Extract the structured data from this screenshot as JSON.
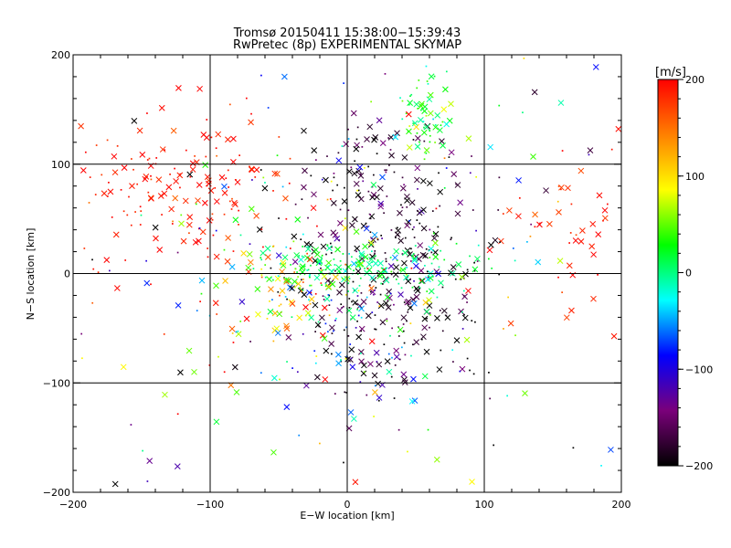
{
  "chart_data": {
    "type": "scatter",
    "title": "Tromsø 20150411 15:38:00−15:39:43",
    "subtitle": "RwPretec (8p) EXPERIMENTAL SKYMAP",
    "xlabel": "E−W location [km]",
    "ylabel": "N−S location [km]",
    "xlim": [
      -200,
      200
    ],
    "ylim": [
      -200,
      200
    ],
    "x_ticks": [
      "−200",
      "−100",
      "0",
      "100",
      "200"
    ],
    "y_ticks": [
      "−200",
      "−100",
      "0",
      "100",
      "200"
    ],
    "grid": "lines at −100, 0, 100 km",
    "colorbar": {
      "label": "[m/s]",
      "range": [
        -200,
        200
      ],
      "ticks": [
        "200",
        "100",
        "0",
        "−100",
        "−200"
      ],
      "colormap": [
        "#000000",
        "#7a007a",
        "#0000ff",
        "#00ffff",
        "#00ff00",
        "#ffff00",
        "#ff8000",
        "#ff0000"
      ]
    },
    "marker_types": [
      "cross",
      "dot"
    ],
    "color_scheme": {
      "axes": "#000000",
      "background": "#ffffff"
    }
  }
}
